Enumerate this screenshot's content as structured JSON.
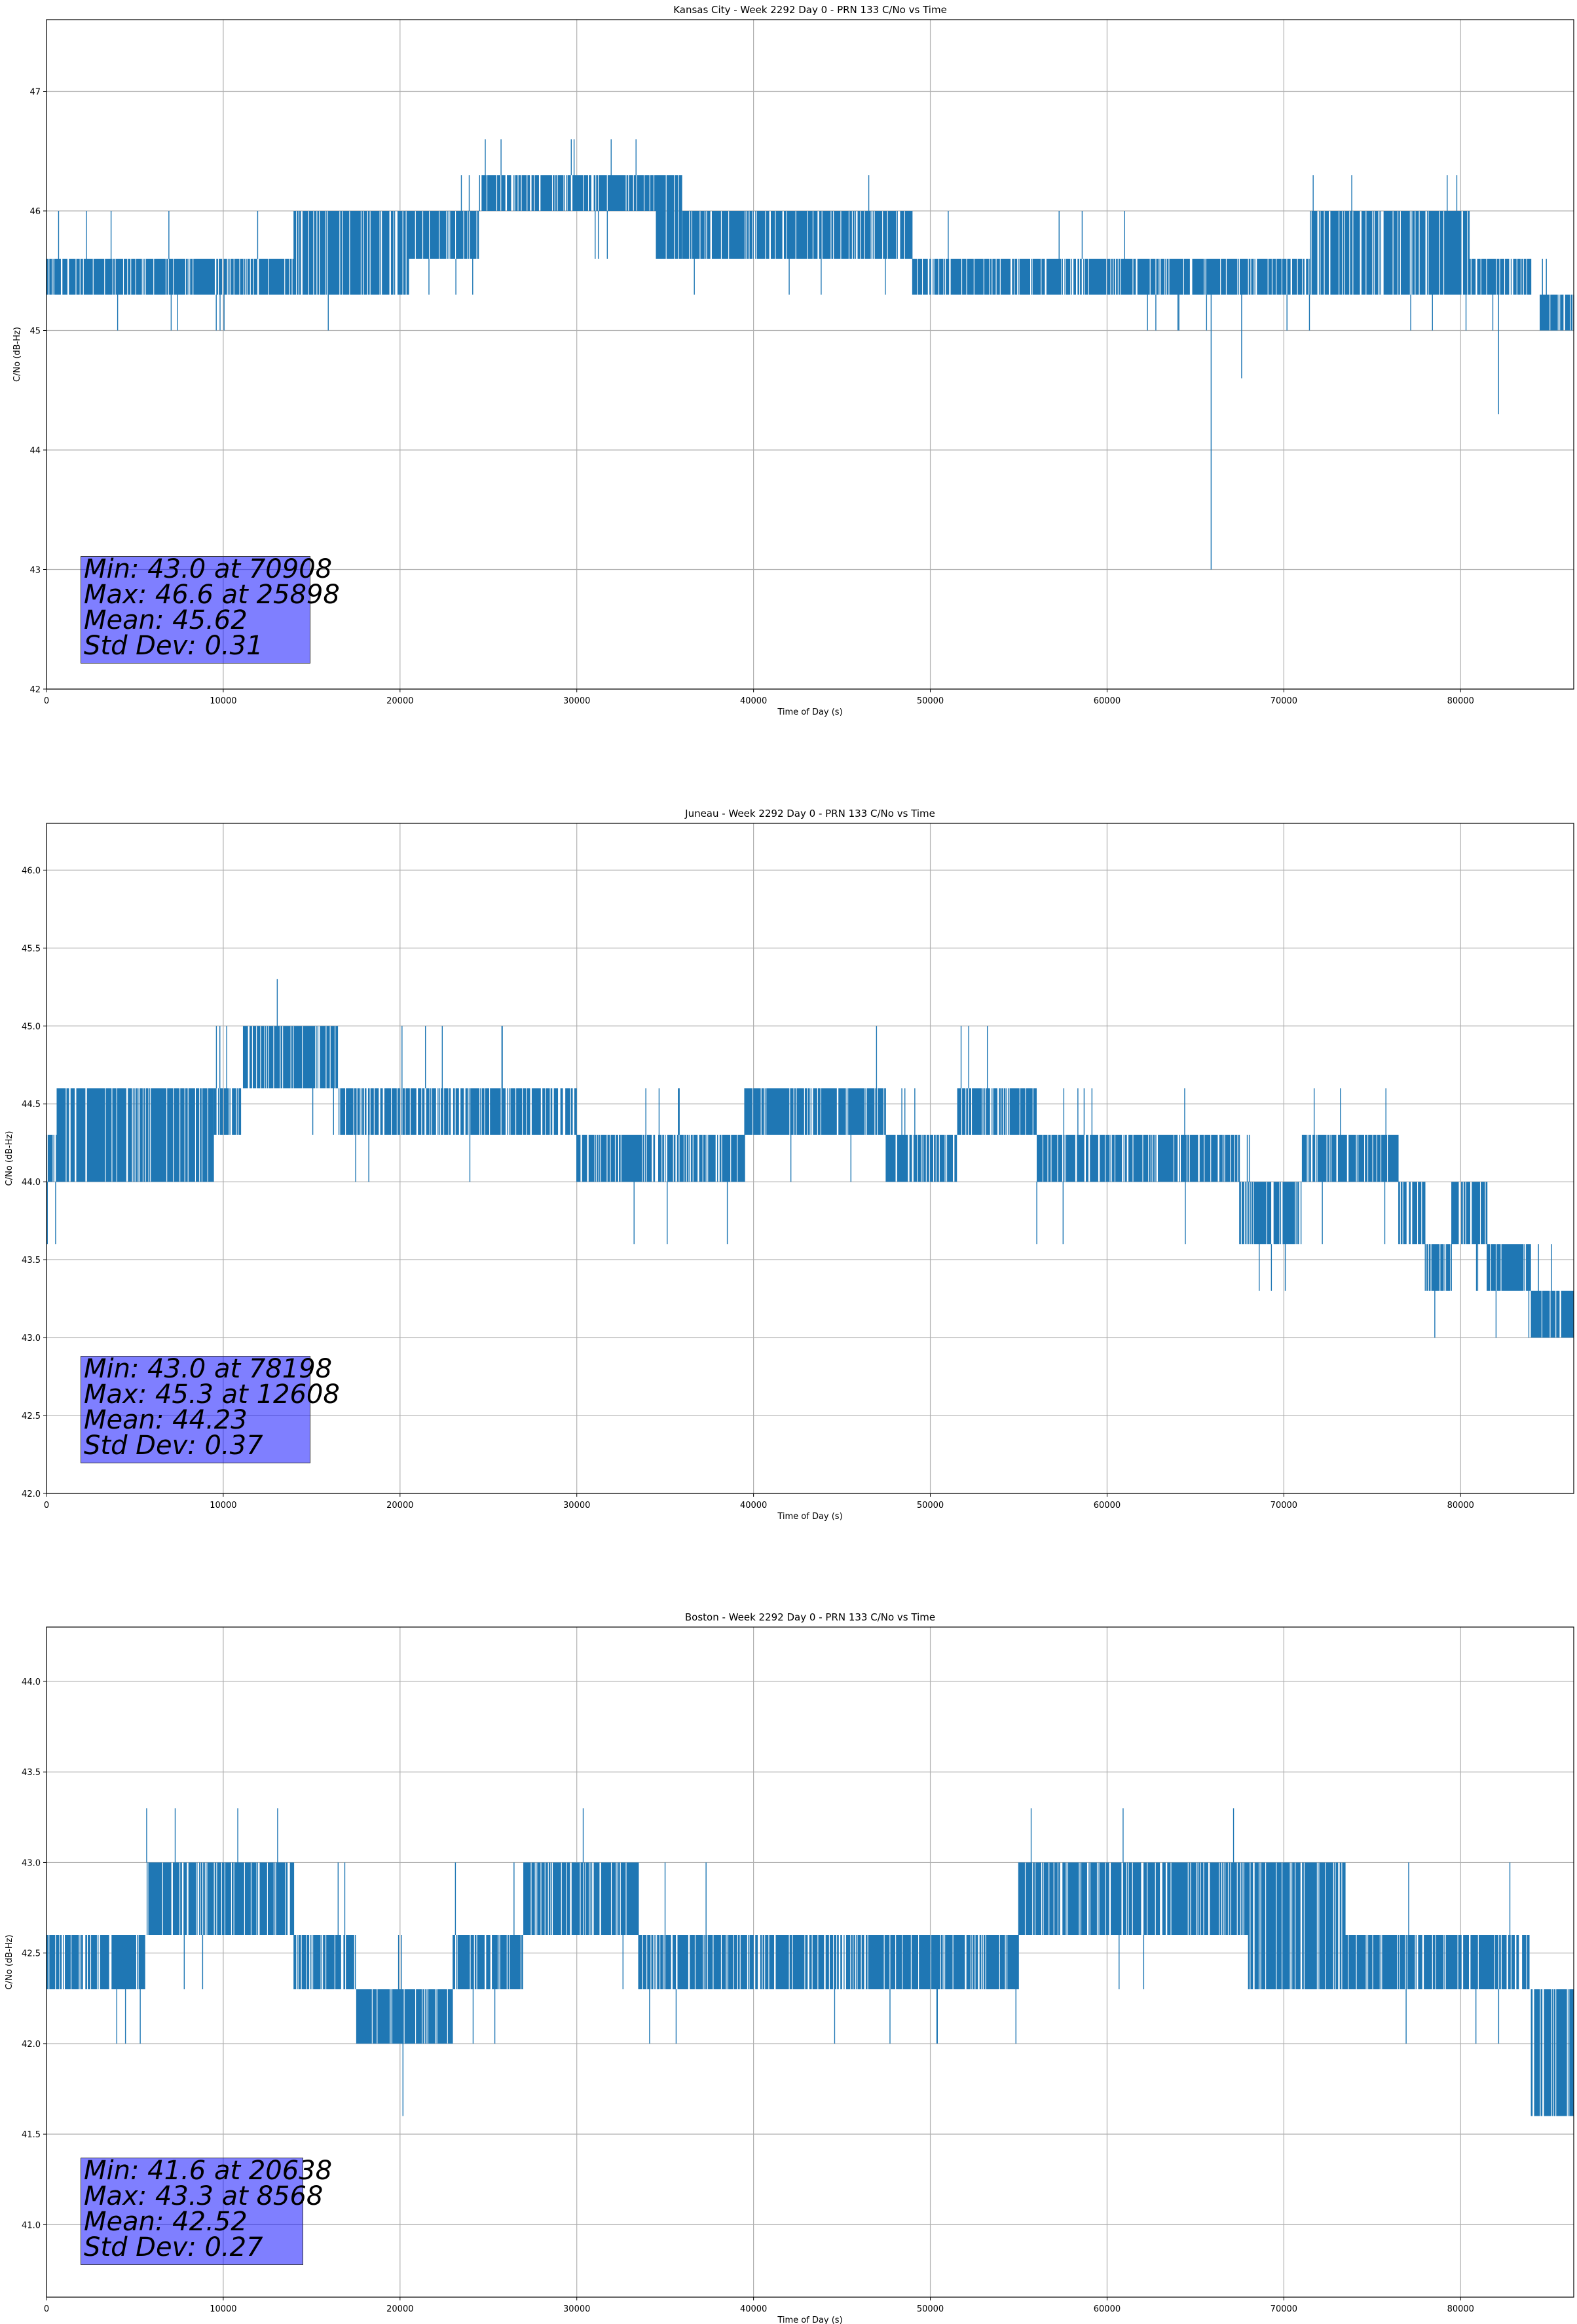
{
  "colors": {
    "series": "#1f77b4",
    "grid": "#b0b0b0",
    "stats_box": "#8080ff"
  },
  "chart_data": [
    {
      "type": "line",
      "title": "Kansas City - Week 2292 Day 0 - PRN 133 C/No vs Time",
      "xlabel": "Time of Day (s)",
      "ylabel": "C/No (dB-Hz)",
      "xlim": [
        0,
        86400
      ],
      "ylim": [
        42,
        47.6
      ],
      "xticks": [
        0,
        10000,
        20000,
        30000,
        40000,
        50000,
        60000,
        70000,
        80000
      ],
      "yticks": [
        42,
        43,
        44,
        45,
        46,
        47
      ],
      "ytick_labels": [
        "42",
        "43",
        "44",
        "45",
        "46",
        "47"
      ],
      "grid": true,
      "series": [
        {
          "name": "C/No",
          "x_start": 0,
          "x_end": 86400,
          "resolution_db": 0.3,
          "segments": [
            {
              "x": [
                0,
                14000
              ],
              "low": 45.3,
              "high": 45.6,
              "lo_spikes": [
                45.0,
                45.0,
                45.0,
                45.0,
                45.0,
                45.0
              ],
              "hi_spikes": [
                46.0,
                46.0,
                46.0,
                46.0,
                46.0
              ]
            },
            {
              "x": [
                14000,
                20500
              ],
              "low": 45.3,
              "high": 46.0,
              "lo_spikes": [
                45.0,
                45.3,
                45.3
              ],
              "hi_spikes": [
                46.0,
                46.0,
                46.0
              ]
            },
            {
              "x": [
                20500,
                24500
              ],
              "low": 45.6,
              "high": 46.0,
              "lo_spikes": [
                45.3,
                45.3,
                45.3
              ],
              "hi_spikes": [
                46.3,
                46.3
              ]
            },
            {
              "x": [
                24500,
                34500
              ],
              "low": 46.0,
              "high": 46.3,
              "lo_spikes": [
                45.6,
                45.6,
                45.6
              ],
              "hi_spikes": [
                46.6,
                46.6,
                46.6,
                46.6,
                46.6,
                46.6
              ]
            },
            {
              "x": [
                34500,
                36000
              ],
              "low": 45.6,
              "high": 46.3,
              "lo_spikes": [
                45.6
              ],
              "hi_spikes": [
                46.3
              ]
            },
            {
              "x": [
                36000,
                49000
              ],
              "low": 45.6,
              "high": 46.0,
              "lo_spikes": [
                45.3,
                45.3,
                45.3,
                45.3
              ],
              "hi_spikes": [
                46.3,
                46.0
              ]
            },
            {
              "x": [
                49000,
                61000
              ],
              "low": 45.3,
              "high": 45.6,
              "lo_spikes": [
                45.3,
                45.3
              ],
              "hi_spikes": [
                46.0,
                46.0,
                46.0,
                46.0
              ]
            },
            {
              "x": [
                61000,
                71500
              ],
              "low": 45.3,
              "high": 45.6,
              "lo_spikes": [
                45.0,
                45.0,
                45.0,
                45.0,
                45.0,
                45.0,
                45.0,
                44.6,
                43.0
              ],
              "hi_spikes": [
                45.6
              ]
            },
            {
              "x": [
                71500,
                80500
              ],
              "low": 45.3,
              "high": 46.0,
              "lo_spikes": [
                45.0,
                45.0,
                45.0
              ],
              "hi_spikes": [
                46.3,
                46.3,
                46.3,
                46.3
              ]
            },
            {
              "x": [
                80500,
                84000
              ],
              "low": 45.3,
              "high": 45.6,
              "lo_spikes": [
                45.0,
                44.3
              ],
              "hi_spikes": [
                45.6
              ]
            },
            {
              "x": [
                84500,
                86400
              ],
              "low": 45.0,
              "high": 45.3,
              "lo_spikes": [
                45.0
              ],
              "hi_spikes": [
                45.6,
                45.6
              ]
            }
          ]
        }
      ],
      "stats": {
        "min": "Min: 43.0 at 70908",
        "max": "Max: 46.6 at 25898",
        "mean": "Mean: 45.62",
        "std": "Std Dev: 0.31"
      }
    },
    {
      "type": "line",
      "title": "Juneau - Week 2292 Day 0 - PRN 133 C/No vs Time",
      "xlabel": "Time of Day (s)",
      "ylabel": "C/No (dB-Hz)",
      "xlim": [
        0,
        86400
      ],
      "ylim": [
        42,
        46.3
      ],
      "xticks": [
        0,
        10000,
        20000,
        30000,
        40000,
        50000,
        60000,
        70000,
        80000
      ],
      "yticks": [
        42.0,
        42.5,
        43.0,
        43.5,
        44.0,
        44.5,
        45.0,
        45.5,
        46.0
      ],
      "ytick_labels": [
        "42.0",
        "42.5",
        "43.0",
        "43.5",
        "44.0",
        "44.5",
        "45.0",
        "45.5",
        "46.0"
      ],
      "grid": true,
      "series": [
        {
          "name": "C/No",
          "x_start": 0,
          "x_end": 86400,
          "resolution_db": 0.3,
          "segments": [
            {
              "x": [
                0,
                600
              ],
              "low": 44.0,
              "high": 44.3,
              "lo_spikes": [
                43.6,
                43.6
              ],
              "hi_spikes": [
                44.3
              ]
            },
            {
              "x": [
                600,
                9500
              ],
              "low": 44.0,
              "high": 44.6,
              "lo_spikes": [
                44.0,
                44.0,
                44.0
              ],
              "hi_spikes": [
                44.6,
                44.6,
                44.6
              ]
            },
            {
              "x": [
                9500,
                11000
              ],
              "low": 44.3,
              "high": 44.6,
              "lo_spikes": [
                44.3
              ],
              "hi_spikes": [
                45.0,
                45.0,
                45.0
              ]
            },
            {
              "x": [
                11000,
                16500
              ],
              "low": 44.6,
              "high": 45.0,
              "lo_spikes": [
                44.3,
                44.3
              ],
              "hi_spikes": [
                45.3
              ]
            },
            {
              "x": [
                16500,
                30000
              ],
              "low": 44.3,
              "high": 44.6,
              "lo_spikes": [
                44.0,
                44.0,
                44.0
              ],
              "hi_spikes": [
                45.0,
                45.0,
                45.0,
                45.0,
                45.0
              ]
            },
            {
              "x": [
                30000,
                39500
              ],
              "low": 44.0,
              "high": 44.3,
              "lo_spikes": [
                43.6,
                43.6,
                43.6
              ],
              "hi_spikes": [
                44.6,
                44.6,
                44.6,
                44.6
              ]
            },
            {
              "x": [
                39500,
                47500
              ],
              "low": 44.3,
              "high": 44.6,
              "lo_spikes": [
                44.0,
                44.0
              ],
              "hi_spikes": [
                45.0
              ]
            },
            {
              "x": [
                47500,
                51500
              ],
              "low": 44.0,
              "high": 44.3,
              "lo_spikes": [
                44.0
              ],
              "hi_spikes": [
                44.6,
                44.6,
                44.6
              ]
            },
            {
              "x": [
                51500,
                56000
              ],
              "low": 44.3,
              "high": 44.6,
              "lo_spikes": [
                44.3
              ],
              "hi_spikes": [
                45.0,
                45.0,
                45.0
              ]
            },
            {
              "x": [
                56000,
                67500
              ],
              "low": 44.0,
              "high": 44.3,
              "lo_spikes": [
                43.6,
                43.6,
                43.6
              ],
              "hi_spikes": [
                44.6,
                44.6,
                44.6,
                44.6,
                44.6
              ]
            },
            {
              "x": [
                67500,
                71000
              ],
              "low": 43.6,
              "high": 44.0,
              "lo_spikes": [
                43.3,
                43.3,
                43.3
              ],
              "hi_spikes": [
                44.3,
                44.3
              ]
            },
            {
              "x": [
                71000,
                76500
              ],
              "low": 44.0,
              "high": 44.3,
              "lo_spikes": [
                43.6,
                43.6
              ],
              "hi_spikes": [
                44.6,
                44.6,
                44.6
              ]
            },
            {
              "x": [
                76500,
                78000
              ],
              "low": 43.6,
              "high": 44.0,
              "lo_spikes": [
                43.6
              ],
              "hi_spikes": [
                44.0
              ]
            },
            {
              "x": [
                78000,
                79500
              ],
              "low": 43.3,
              "high": 43.6,
              "lo_spikes": [
                43.0
              ],
              "hi_spikes": [
                43.6
              ]
            },
            {
              "x": [
                79500,
                81500
              ],
              "low": 43.6,
              "high": 44.0,
              "lo_spikes": [
                43.3,
                43.3
              ],
              "hi_spikes": [
                44.0
              ]
            },
            {
              "x": [
                81500,
                84000
              ],
              "low": 43.3,
              "high": 43.6,
              "lo_spikes": [
                43.0,
                43.0
              ],
              "hi_spikes": [
                43.6
              ]
            },
            {
              "x": [
                84000,
                86400
              ],
              "low": 43.0,
              "high": 43.3,
              "lo_spikes": [
                43.0
              ],
              "hi_spikes": [
                43.6,
                43.6
              ]
            }
          ]
        }
      ],
      "stats": {
        "min": "Min: 43.0 at 78198",
        "max": "Max: 45.3 at 12608",
        "mean": "Mean: 44.23",
        "std": "Std Dev: 0.37"
      }
    },
    {
      "type": "line",
      "title": "Boston - Week 2292 Day 0 - PRN 133 C/No vs Time",
      "xlabel": "Time of Day (s)",
      "ylabel": "C/No (dB-Hz)",
      "xlim": [
        0,
        86400
      ],
      "ylim": [
        40.6,
        44.3
      ],
      "xticks": [
        0,
        10000,
        20000,
        30000,
        40000,
        50000,
        60000,
        70000,
        80000
      ],
      "yticks": [
        41.0,
        41.5,
        42.0,
        42.5,
        43.0,
        43.5,
        44.0
      ],
      "ytick_labels": [
        "41.0",
        "41.5",
        "42.0",
        "42.5",
        "43.0",
        "43.5",
        "44.0"
      ],
      "grid": true,
      "series": [
        {
          "name": "C/No",
          "x_start": 0,
          "x_end": 86400,
          "resolution_db": 0.3,
          "segments": [
            {
              "x": [
                0,
                5600
              ],
              "low": 42.3,
              "high": 42.6,
              "lo_spikes": [
                42.0,
                42.0,
                42.0
              ],
              "hi_spikes": [
                42.6
              ]
            },
            {
              "x": [
                5600,
                14000
              ],
              "low": 42.6,
              "high": 43.0,
              "lo_spikes": [
                42.3,
                42.3
              ],
              "hi_spikes": [
                43.3,
                43.3,
                43.3,
                43.3
              ]
            },
            {
              "x": [
                14000,
                17500
              ],
              "low": 42.3,
              "high": 42.6,
              "lo_spikes": [
                42.3
              ],
              "hi_spikes": [
                43.0,
                43.0
              ]
            },
            {
              "x": [
                17500,
                23000
              ],
              "low": 42.0,
              "high": 42.3,
              "lo_spikes": [
                41.6
              ],
              "hi_spikes": [
                42.6,
                42.6
              ]
            },
            {
              "x": [
                23000,
                27000
              ],
              "low": 42.3,
              "high": 42.6,
              "lo_spikes": [
                42.0,
                42.0
              ],
              "hi_spikes": [
                43.0,
                43.0
              ]
            },
            {
              "x": [
                27000,
                33500
              ],
              "low": 42.6,
              "high": 43.0,
              "lo_spikes": [
                42.3
              ],
              "hi_spikes": [
                43.3
              ]
            },
            {
              "x": [
                33500,
                41000
              ],
              "low": 42.3,
              "high": 42.6,
              "lo_spikes": [
                42.0,
                42.0
              ],
              "hi_spikes": [
                43.0,
                43.0
              ]
            },
            {
              "x": [
                41000,
                55000
              ],
              "low": 42.3,
              "high": 42.6,
              "lo_spikes": [
                42.0,
                42.0,
                42.0,
                42.0,
                42.0
              ],
              "hi_spikes": [
                42.6
              ]
            },
            {
              "x": [
                55000,
                68000
              ],
              "low": 42.6,
              "high": 43.0,
              "lo_spikes": [
                42.3,
                42.3
              ],
              "hi_spikes": [
                43.3,
                43.3,
                43.3
              ]
            },
            {
              "x": [
                68000,
                73500
              ],
              "low": 42.3,
              "high": 43.0,
              "lo_spikes": [
                42.3
              ],
              "hi_spikes": [
                43.0
              ]
            },
            {
              "x": [
                73500,
                84000
              ],
              "low": 42.3,
              "high": 42.6,
              "lo_spikes": [
                42.0,
                42.0,
                42.0
              ],
              "hi_spikes": [
                43.0,
                43.0
              ]
            },
            {
              "x": [
                84000,
                86400
              ],
              "low": 41.6,
              "high": 42.3,
              "lo_spikes": [
                41.6,
                41.6
              ],
              "hi_spikes": [
                42.3
              ]
            }
          ]
        }
      ],
      "stats": {
        "min": "Min: 41.6 at 20638",
        "max": "Max: 43.3 at 8568",
        "mean": "Mean: 42.52",
        "std": "Std Dev: 0.27"
      }
    }
  ]
}
